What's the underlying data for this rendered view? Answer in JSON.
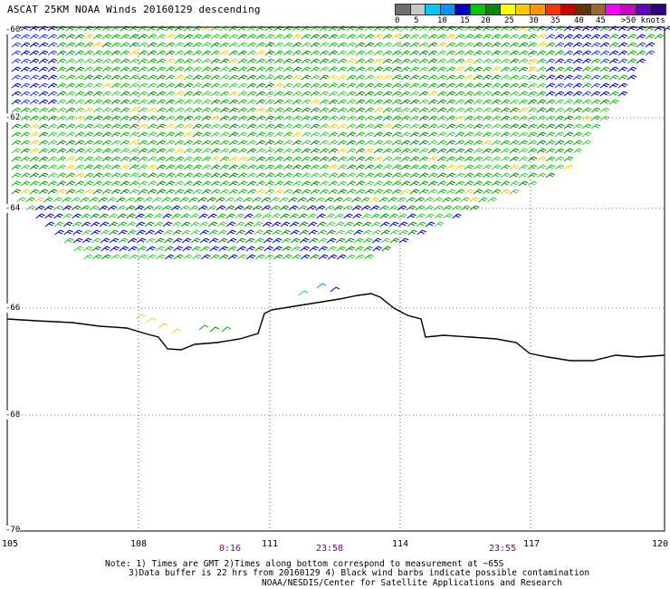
{
  "title": "ASCAT 25KM NOAA Winds 20160129 descending",
  "speed_scale": {
    "colors": [
      "#6e6e6e",
      "#c8c8c8",
      "#00c8ff",
      "#0096ff",
      "#0000c8",
      "#00c800",
      "#008c00",
      "#ffff00",
      "#ffc800",
      "#ff9600",
      "#ff3200",
      "#c80000",
      "#643200",
      "#a06432",
      "#ff00ff",
      "#c800c8",
      "#6400c8",
      "#300080"
    ],
    "labels": [
      "0",
      "5",
      "10",
      "15",
      "20",
      "25",
      "30",
      "35",
      "40",
      "45",
      ">50 knots"
    ]
  },
  "map": {
    "lon_labels": [
      "105",
      "108",
      "111",
      "114",
      "117",
      "120"
    ],
    "lat_labels": [
      "-60",
      "-62",
      "-64",
      "-66",
      "-68",
      "-70"
    ],
    "time_labels": [
      "0:16",
      "23:58",
      "23:55"
    ]
  },
  "notes": {
    "line1": "Note: 1) Times are GMT 2)Times along bottom correspond to measurement at ~65S",
    "line2": "3)Data buffer is 22 hrs from 20160129 4) Black wind barbs indicate possible contamination",
    "line3": "NOAA/NESDIS/Center for Satellite Applications and Research"
  }
}
